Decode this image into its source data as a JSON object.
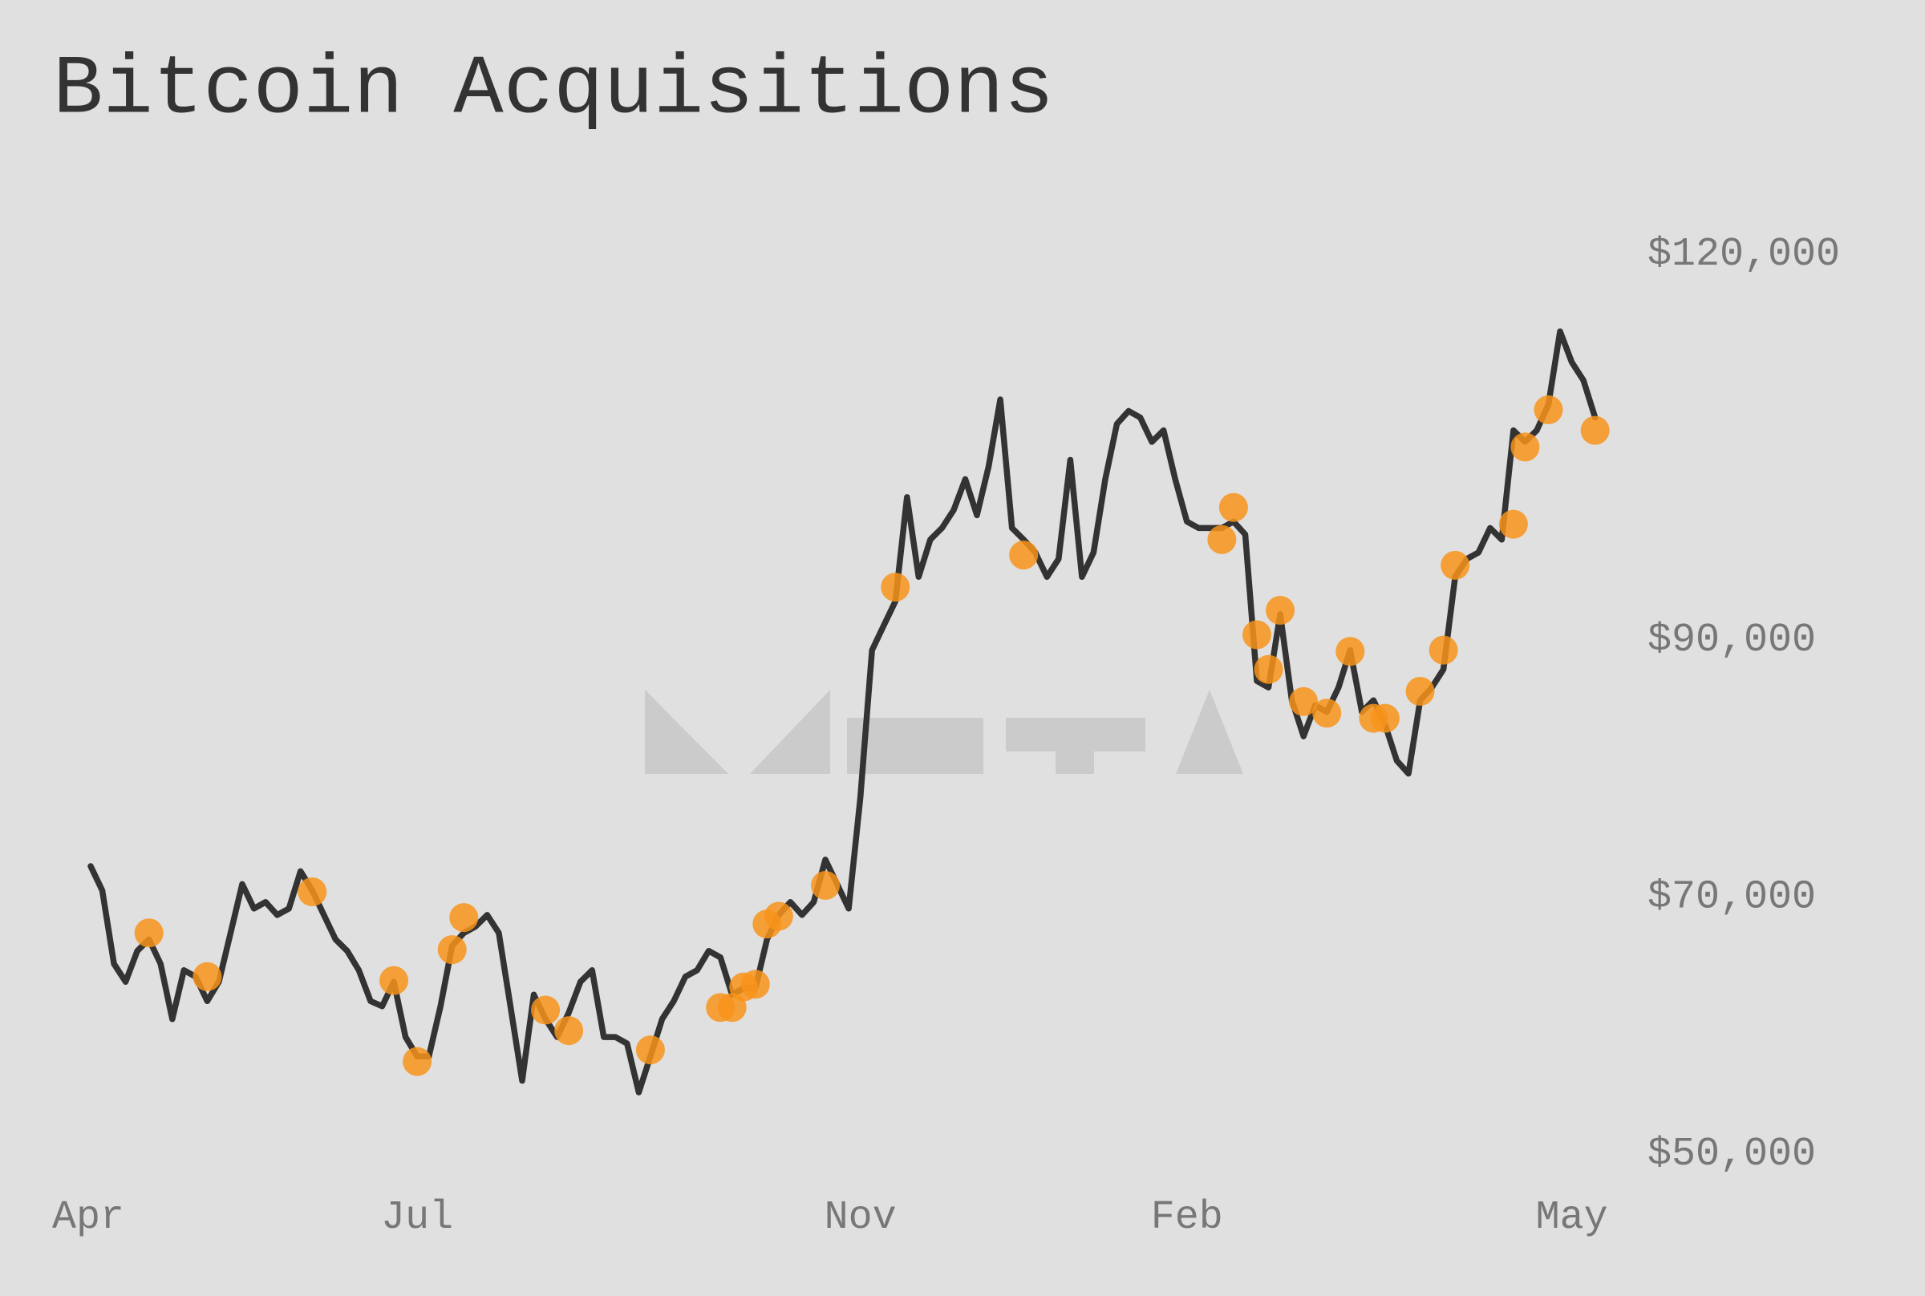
{
  "chart_data": {
    "type": "line",
    "title": "Bitcoin Acquisitions",
    "categories": [
      "Apr",
      null,
      null,
      null,
      null,
      null,
      null,
      null,
      null,
      null,
      null,
      null,
      null,
      null,
      null,
      null,
      null,
      null,
      null,
      null,
      null,
      null,
      null,
      null,
      null,
      null,
      null,
      null,
      "Jul",
      null,
      null,
      null,
      null,
      null,
      null,
      null,
      null,
      null,
      null,
      null,
      null,
      null,
      null,
      null,
      null,
      null,
      null,
      null,
      null,
      null,
      null,
      null,
      null,
      null,
      null,
      null,
      null,
      null,
      null,
      null,
      null,
      null,
      null,
      null,
      null,
      null,
      "Nov",
      null,
      null,
      null,
      null,
      null,
      null,
      null,
      null,
      null,
      null,
      null,
      null,
      null,
      null,
      null,
      null,
      null,
      null,
      null,
      null,
      null,
      null,
      null,
      null,
      null,
      null,
      null,
      "Feb",
      null,
      null,
      null,
      null,
      null,
      null,
      null,
      null,
      null,
      null,
      null,
      null,
      null,
      null,
      null,
      null,
      null,
      null,
      null,
      null,
      null,
      null,
      null,
      null,
      null,
      null,
      null,
      null,
      null,
      null,
      null,
      null,
      "May",
      null,
      null
    ],
    "series": [
      {
        "color": "#333333",
        "values": [
          72400,
          70500,
          64800,
          63400,
          65800,
          66700,
          64800,
          60500,
          64300,
          63800,
          61900,
          63400,
          67200,
          71000,
          69100,
          69600,
          68600,
          69100,
          72000,
          70500,
          68600,
          66700,
          65800,
          64300,
          61900,
          61500,
          63400,
          59100,
          57600,
          57600,
          61500,
          66200,
          67200,
          67700,
          68600,
          67200,
          61500,
          55700,
          62400,
          60500,
          59100,
          61000,
          63400,
          64300,
          59100,
          59100,
          58600,
          54800,
          57600,
          60500,
          61900,
          63800,
          64300,
          65800,
          65300,
          62400,
          62900,
          62900,
          66700,
          68600,
          69600,
          68600,
          69600,
          72900,
          71000,
          69100,
          77700,
          89200,
          91100,
          93000,
          101100,
          94900,
          97800,
          98700,
          100100,
          102500,
          99700,
          103500,
          108700,
          98700,
          97800,
          96800,
          94900,
          96300,
          104000,
          94900,
          96800,
          102500,
          106800,
          107800,
          107300,
          105400,
          106300,
          102500,
          99200,
          98700,
          98700,
          98700,
          99200,
          98200,
          86800,
          86300,
          92000,
          85300,
          82500,
          84900,
          84400,
          86300,
          89200,
          84400,
          85300,
          83400,
          80600,
          79600,
          85300,
          86300,
          87700,
          94900,
          96300,
          96800,
          98700,
          97800,
          106300,
          105400,
          106300,
          108300,
          114000,
          111600,
          110200,
          107300
        ]
      },
      {
        "color": "#f7931a",
        "marker": "dot",
        "values": [
          null,
          null,
          null,
          null,
          null,
          67200,
          null,
          null,
          null,
          null,
          63800,
          null,
          null,
          null,
          null,
          null,
          null,
          null,
          null,
          70400,
          null,
          null,
          null,
          null,
          null,
          null,
          63500,
          null,
          57200,
          null,
          null,
          65900,
          68400,
          null,
          null,
          null,
          null,
          null,
          null,
          61200,
          null,
          59600,
          null,
          null,
          null,
          null,
          null,
          null,
          58100,
          null,
          null,
          null,
          null,
          null,
          61400,
          61400,
          63000,
          63200,
          67900,
          68500,
          null,
          null,
          null,
          70900,
          null,
          null,
          null,
          null,
          null,
          94100,
          null,
          null,
          null,
          null,
          null,
          null,
          null,
          null,
          null,
          null,
          96600,
          null,
          null,
          null,
          null,
          null,
          null,
          null,
          null,
          null,
          null,
          null,
          null,
          null,
          null,
          null,
          null,
          97800,
          100300,
          null,
          90400,
          87700,
          92300,
          null,
          85200,
          null,
          84300,
          null,
          89100,
          null,
          83900,
          83900,
          null,
          null,
          86000,
          null,
          89200,
          95800,
          null,
          null,
          null,
          null,
          99000,
          105000,
          null,
          107900,
          null,
          null,
          null,
          106300
        ]
      }
    ],
    "ylim": [
      50000,
      120000
    ],
    "yticks": [
      {
        "value": 120000,
        "label": "$120,000"
      },
      {
        "value": 90000,
        "label": "$90,000"
      },
      {
        "value": 70000,
        "label": "$70,000"
      },
      {
        "value": 50000,
        "label": "$50,000"
      }
    ],
    "grid": false
  }
}
